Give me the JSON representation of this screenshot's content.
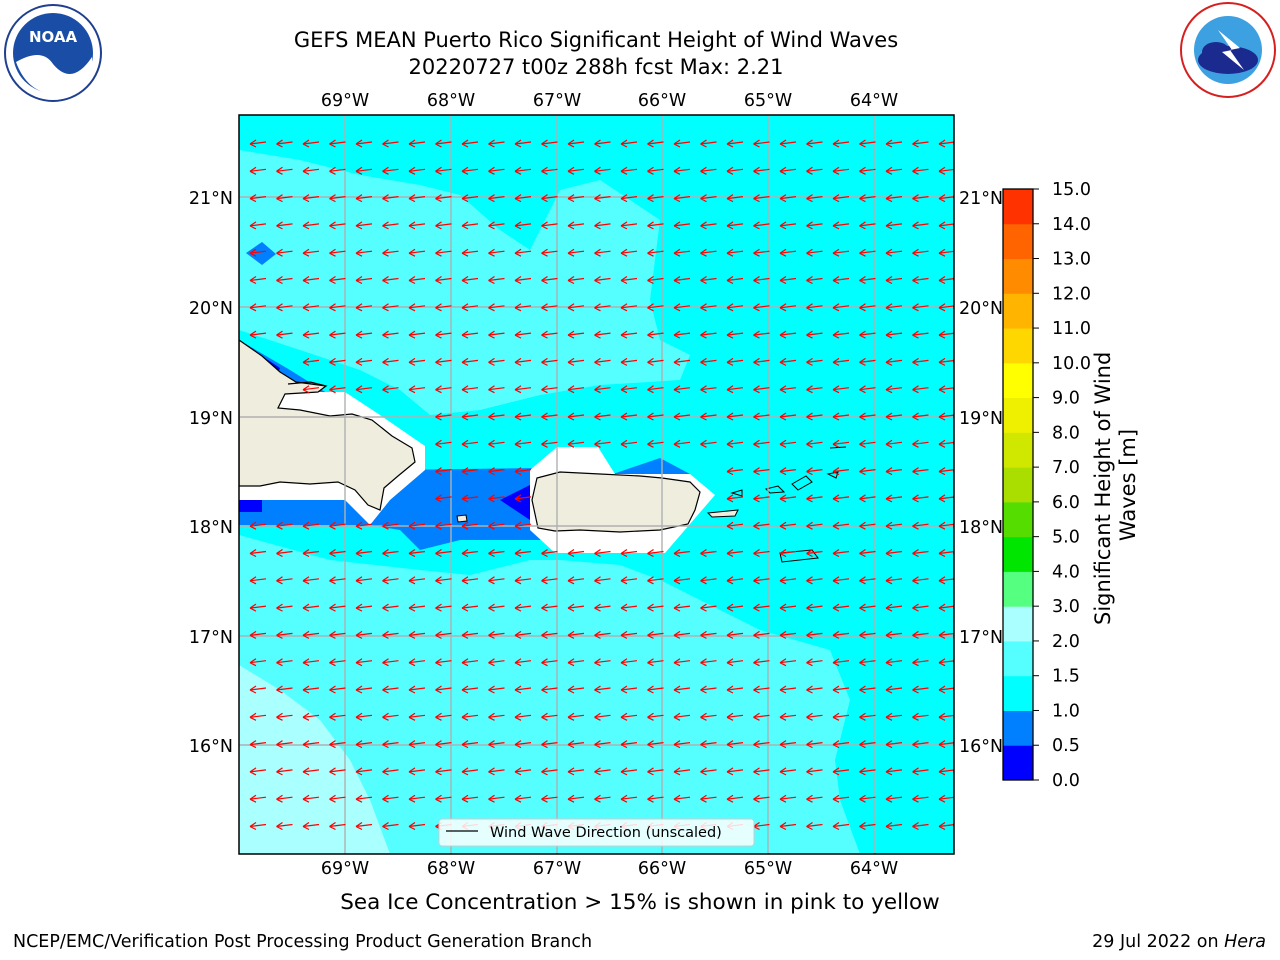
{
  "header": {
    "title_line1": "GEFS MEAN Puerto Rico Significant Height of Wind Waves",
    "title_line2": "20220727 t00z 288h fcst   Max: 2.21"
  },
  "logos": {
    "left": {
      "text": "NOAA",
      "icon": "noaa-logo-icon"
    },
    "right": {
      "icon": "national-weather-service-logo-icon"
    }
  },
  "map": {
    "lon_ticks": [
      "69°W",
      "68°W",
      "67°W",
      "66°W",
      "65°W",
      "64°W"
    ],
    "lat_ticks": [
      "21°N",
      "20°N",
      "19°N",
      "18°N",
      "17°N",
      "16°N"
    ],
    "legend_label": "Wind Wave Direction (unscaled)",
    "arrow_color": "#ff0000",
    "land_color": "#efedde",
    "field_colors": {
      "0.5-1.0": "#0080ff",
      "1.0-1.5": "#00ffff",
      "1.5-2.0": "#55ffff",
      "2.0-3.0": "#aaffff"
    }
  },
  "colorbar": {
    "label": "Significant Height of Wind Waves [m]",
    "ticks": [
      "0.0",
      "0.5",
      "1.0",
      "1.5",
      "2.0",
      "3.0",
      "4.0",
      "5.0",
      "6.0",
      "7.0",
      "8.0",
      "9.0",
      "10.0",
      "11.0",
      "12.0",
      "13.0",
      "14.0",
      "15.0"
    ],
    "colors": [
      "#0000ff",
      "#0080ff",
      "#00ffff",
      "#55ffff",
      "#aaffff",
      "#55ff7f",
      "#00e600",
      "#55dd00",
      "#aadd00",
      "#d0e800",
      "#eef000",
      "#ffff00",
      "#ffd700",
      "#ffb400",
      "#ff8c00",
      "#ff6400",
      "#ff3200",
      "#ff0000"
    ]
  },
  "subtitle": "Sea Ice Concentration > 15% is shown in pink to yellow",
  "footer": {
    "left": "NCEP/EMC/Verification Post Processing Product Generation Branch",
    "date": "29 Jul 2022 on",
    "host": "Hera"
  }
}
